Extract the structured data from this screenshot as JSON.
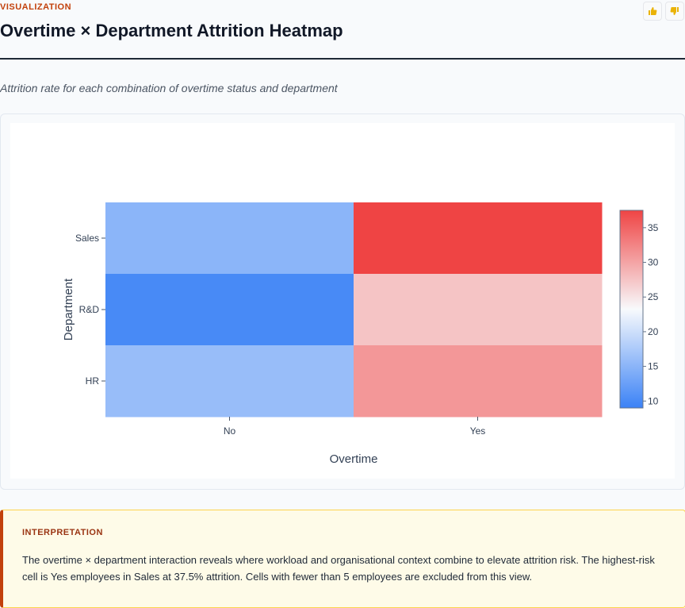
{
  "header": {
    "eyebrow": "VISUALIZATION",
    "title": "Overtime × Department Attrition Heatmap",
    "subtitle": "Attrition rate for each combination of overtime status and department",
    "thumb_up_icon": "thumbs-up-icon",
    "thumb_down_icon": "thumbs-down-icon"
  },
  "chart_data": {
    "type": "heatmap",
    "xlabel": "Overtime",
    "ylabel": "Department",
    "x_categories": [
      "No",
      "Yes"
    ],
    "y_categories": [
      "Sales",
      "R&D",
      "HR"
    ],
    "values": [
      [
        15.0,
        37.5
      ],
      [
        10.0,
        27.5
      ],
      [
        16.0,
        31.0
      ]
    ],
    "colorscale": {
      "low": "#3b82f6",
      "mid": "#f8fafc",
      "high": "#ef4444"
    },
    "zmin": 9.0,
    "zmax": 37.5,
    "colorbar_ticks": [
      10,
      15,
      20,
      25,
      30,
      35
    ]
  },
  "interpretation": {
    "label": "INTERPRETATION",
    "text": "The overtime × department interaction reveals where workload and organisational context combine to elevate attrition risk. The highest-risk cell is Yes employees in Sales at 37.5% attrition. Cells with fewer than 5 employees are excluded from this view."
  }
}
